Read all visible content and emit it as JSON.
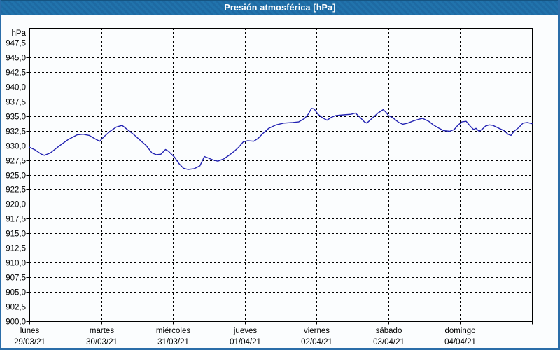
{
  "window": {
    "title": "Presión atmosférica [hPa]",
    "title_bar_color": "#1e6aa5",
    "border_color": "#2a6da9",
    "background_color": "#fbfdfe"
  },
  "chart_data": {
    "type": "line",
    "title": "Presión atmosférica [hPa]",
    "unit_label": "hPa",
    "grid": {
      "dashed": true,
      "color": "#000000"
    },
    "legend": "none",
    "y_axis": {
      "min": 900,
      "max": 950,
      "gridline_step": 2.5,
      "tick_labels": [
        "947,5",
        "945,0",
        "942,5",
        "940,0",
        "937,5",
        "935,0",
        "932,5",
        "930,0",
        "927,5",
        "925,0",
        "922,5",
        "920,0",
        "917,5",
        "915,0",
        "912,5",
        "910,0",
        "907,5",
        "905,0",
        "902,5",
        "900,0"
      ]
    },
    "x_axis": {
      "hours_total": 168,
      "days": [
        {
          "name": "lunes",
          "date": "29/03/21"
        },
        {
          "name": "martes",
          "date": "30/03/21"
        },
        {
          "name": "miércoles",
          "date": "31/03/21"
        },
        {
          "name": "jueves",
          "date": "01/04/21"
        },
        {
          "name": "viernes",
          "date": "02/04/21"
        },
        {
          "name": "sábado",
          "date": "03/04/21"
        },
        {
          "name": "domingo",
          "date": "04/04/21"
        }
      ]
    },
    "series": [
      {
        "name": "Presión atmosférica",
        "color": "#2222b2",
        "points": [
          [
            0,
            929.7
          ],
          [
            2,
            929.2
          ],
          [
            4,
            928.5
          ],
          [
            5,
            928.3
          ],
          [
            7,
            928.7
          ],
          [
            10,
            929.9
          ],
          [
            13,
            931.0
          ],
          [
            16,
            931.8
          ],
          [
            18,
            931.9
          ],
          [
            20,
            931.7
          ],
          [
            22,
            931.1
          ],
          [
            23.5,
            930.7
          ],
          [
            25,
            931.5
          ],
          [
            27,
            932.4
          ],
          [
            29,
            933.1
          ],
          [
            31,
            933.4
          ],
          [
            33,
            932.6
          ],
          [
            35,
            931.8
          ],
          [
            37,
            930.9
          ],
          [
            39,
            930.0
          ],
          [
            41,
            928.7
          ],
          [
            42.5,
            928.4
          ],
          [
            44,
            928.5
          ],
          [
            45.5,
            929.3
          ],
          [
            46.5,
            929.0
          ],
          [
            47.5,
            928.5
          ],
          [
            48.5,
            928.0
          ],
          [
            50,
            926.9
          ],
          [
            51.5,
            926.1
          ],
          [
            53,
            925.9
          ],
          [
            55,
            926.0
          ],
          [
            57,
            926.5
          ],
          [
            58.5,
            928.1
          ],
          [
            60,
            927.8
          ],
          [
            61.5,
            927.5
          ],
          [
            63,
            927.3
          ],
          [
            65,
            927.7
          ],
          [
            67,
            928.4
          ],
          [
            68.5,
            929.0
          ],
          [
            70,
            929.7
          ],
          [
            71.5,
            930.6
          ],
          [
            73,
            930.8
          ],
          [
            75,
            930.7
          ],
          [
            76.5,
            931.2
          ],
          [
            78,
            932.0
          ],
          [
            80,
            932.9
          ],
          [
            82.5,
            933.5
          ],
          [
            85,
            933.8
          ],
          [
            88,
            933.9
          ],
          [
            90,
            934.0
          ],
          [
            92,
            934.6
          ],
          [
            93.2,
            935.3
          ],
          [
            94.3,
            936.3
          ],
          [
            95.2,
            936.2
          ],
          [
            96.5,
            935.3
          ],
          [
            98,
            934.7
          ],
          [
            99.5,
            934.3
          ],
          [
            101,
            934.8
          ],
          [
            102.5,
            935.1
          ],
          [
            105,
            935.2
          ],
          [
            107.5,
            935.3
          ],
          [
            109,
            935.5
          ],
          [
            110.5,
            934.8
          ],
          [
            112,
            934.0
          ],
          [
            112.8,
            933.8
          ],
          [
            114.5,
            934.6
          ],
          [
            116.5,
            935.5
          ],
          [
            118.3,
            936.1
          ],
          [
            119.3,
            935.6
          ],
          [
            120,
            935.1
          ],
          [
            121.5,
            934.7
          ],
          [
            123.5,
            933.9
          ],
          [
            124.8,
            933.6
          ],
          [
            126.5,
            933.8
          ],
          [
            128.5,
            934.2
          ],
          [
            130.5,
            934.5
          ],
          [
            131.5,
            934.6
          ],
          [
            133.5,
            934.1
          ],
          [
            135,
            933.5
          ],
          [
            137,
            932.9
          ],
          [
            138.5,
            932.5
          ],
          [
            140.5,
            932.4
          ],
          [
            142,
            932.7
          ],
          [
            143.2,
            933.4
          ],
          [
            144.5,
            934.0
          ],
          [
            146,
            934.1
          ],
          [
            147.5,
            933.2
          ],
          [
            148.5,
            932.7
          ],
          [
            149.3,
            932.9
          ],
          [
            150.3,
            932.4
          ],
          [
            151.5,
            932.8
          ],
          [
            152.5,
            933.3
          ],
          [
            153.7,
            933.5
          ],
          [
            155,
            933.4
          ],
          [
            157,
            932.9
          ],
          [
            158.7,
            932.5
          ],
          [
            160,
            931.9
          ],
          [
            161,
            931.7
          ],
          [
            162,
            932.4
          ],
          [
            163.5,
            933.0
          ],
          [
            165,
            933.8
          ],
          [
            166.5,
            933.9
          ],
          [
            167.3,
            933.8
          ],
          [
            168,
            933.7
          ]
        ]
      }
    ]
  }
}
